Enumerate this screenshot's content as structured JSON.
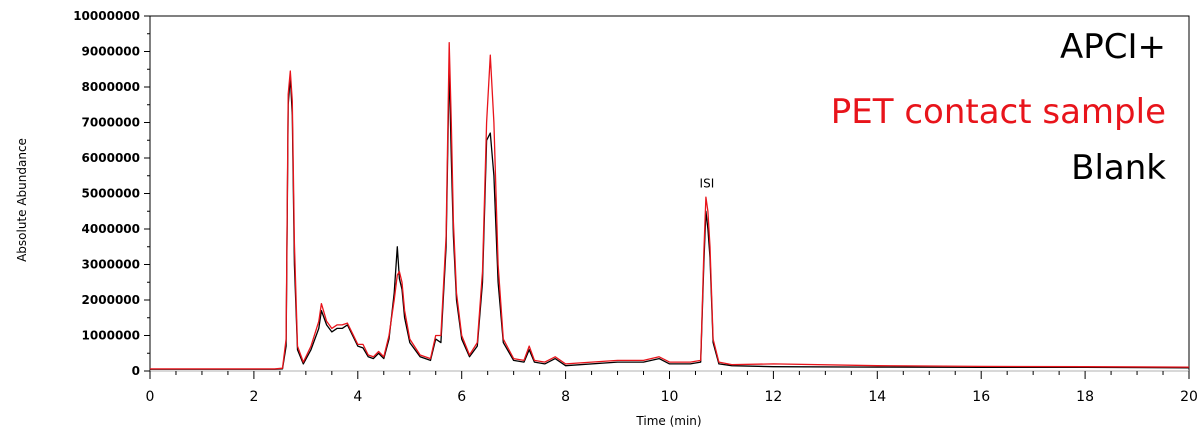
{
  "chart_data": {
    "type": "line",
    "xlabel": "Time (min)",
    "ylabel": "Absolute Abundance",
    "xlim": [
      0,
      20
    ],
    "ylim": [
      0,
      10000000
    ],
    "x_ticks": [
      0,
      2,
      4,
      6,
      8,
      10,
      12,
      14,
      16,
      18,
      20
    ],
    "y_ticks": [
      0,
      1000000,
      2000000,
      3000000,
      4000000,
      5000000,
      6000000,
      7000000,
      8000000,
      9000000,
      10000000
    ],
    "y_tick_labels": [
      "0",
      "1000000",
      "2000000",
      "3000000",
      "4000000",
      "5000000",
      "6000000",
      "7000000",
      "8000000",
      "9000000",
      "10000000"
    ],
    "x_tick_labels": [
      "0",
      "2",
      "4",
      "6",
      "8",
      "10",
      "12",
      "14",
      "16",
      "18",
      "20"
    ],
    "legend": {
      "placement": "top-right",
      "heading": "APCI+",
      "entries": [
        {
          "label": "PET contact sample",
          "color": "#e8141b"
        },
        {
          "label": "Blank",
          "color": "#000000"
        }
      ]
    },
    "annotations": [
      {
        "text": "ISI",
        "x": 10.72,
        "y": 5000000
      }
    ],
    "series": [
      {
        "name": "Blank",
        "color": "#000000",
        "x": [
          0,
          2.4,
          2.55,
          2.62,
          2.66,
          2.7,
          2.74,
          2.78,
          2.84,
          2.95,
          3.1,
          3.25,
          3.3,
          3.4,
          3.5,
          3.6,
          3.7,
          3.8,
          3.9,
          4.0,
          4.1,
          4.2,
          4.3,
          4.4,
          4.5,
          4.6,
          4.7,
          4.76,
          4.8,
          4.85,
          4.9,
          5.0,
          5.2,
          5.4,
          5.5,
          5.6,
          5.7,
          5.76,
          5.8,
          5.84,
          5.9,
          6.0,
          6.15,
          6.3,
          6.4,
          6.48,
          6.55,
          6.62,
          6.7,
          6.8,
          7.0,
          7.2,
          7.3,
          7.4,
          7.6,
          7.8,
          8.0,
          9.0,
          9.5,
          9.8,
          10.0,
          10.4,
          10.6,
          10.66,
          10.7,
          10.74,
          10.78,
          10.84,
          10.95,
          11.2,
          12.0,
          14.0,
          16.0,
          18.0,
          20.0
        ],
        "y": [
          50000,
          50000,
          60000,
          700000,
          7500000,
          8300000,
          7200000,
          3000000,
          600000,
          200000,
          600000,
          1200000,
          1700000,
          1300000,
          1100000,
          1200000,
          1200000,
          1300000,
          1000000,
          700000,
          650000,
          400000,
          350000,
          500000,
          350000,
          900000,
          2200000,
          3500000,
          2600000,
          2300000,
          1500000,
          800000,
          400000,
          300000,
          900000,
          800000,
          3500000,
          8600000,
          6000000,
          3800000,
          2000000,
          900000,
          400000,
          700000,
          2500000,
          6500000,
          6700000,
          5500000,
          2500000,
          800000,
          300000,
          250000,
          600000,
          250000,
          200000,
          350000,
          150000,
          250000,
          250000,
          350000,
          200000,
          200000,
          250000,
          3000000,
          4500000,
          4000000,
          3200000,
          800000,
          200000,
          150000,
          120000,
          110000,
          100000,
          100000,
          90000
        ]
      },
      {
        "name": "PET contact sample",
        "color": "#e8141b",
        "x": [
          0,
          2.4,
          2.55,
          2.62,
          2.66,
          2.7,
          2.74,
          2.78,
          2.84,
          2.95,
          3.1,
          3.25,
          3.3,
          3.4,
          3.5,
          3.6,
          3.7,
          3.8,
          3.9,
          4.0,
          4.1,
          4.2,
          4.3,
          4.4,
          4.5,
          4.6,
          4.7,
          4.76,
          4.8,
          4.85,
          4.9,
          5.0,
          5.2,
          5.4,
          5.5,
          5.6,
          5.7,
          5.76,
          5.8,
          5.84,
          5.9,
          6.0,
          6.15,
          6.3,
          6.4,
          6.48,
          6.55,
          6.62,
          6.7,
          6.8,
          7.0,
          7.2,
          7.3,
          7.4,
          7.6,
          7.8,
          8.0,
          9.0,
          9.5,
          9.8,
          10.0,
          10.4,
          10.6,
          10.66,
          10.7,
          10.74,
          10.78,
          10.84,
          10.95,
          11.2,
          12.0,
          14.0,
          16.0,
          18.0,
          20.0
        ],
        "y": [
          60000,
          60000,
          80000,
          900000,
          7800000,
          8450000,
          7600000,
          3600000,
          700000,
          250000,
          700000,
          1400000,
          1900000,
          1400000,
          1200000,
          1300000,
          1300000,
          1350000,
          1050000,
          750000,
          750000,
          450000,
          400000,
          550000,
          400000,
          1000000,
          2000000,
          2700000,
          2800000,
          2500000,
          1700000,
          900000,
          450000,
          350000,
          1000000,
          1000000,
          3800000,
          9250000,
          7000000,
          4200000,
          2200000,
          1000000,
          450000,
          800000,
          2800000,
          7000000,
          8900000,
          7000000,
          3000000,
          900000,
          350000,
          300000,
          700000,
          300000,
          250000,
          400000,
          200000,
          300000,
          300000,
          400000,
          250000,
          250000,
          300000,
          3300000,
          4900000,
          4500000,
          3500000,
          900000,
          250000,
          180000,
          200000,
          150000,
          130000,
          120000,
          110000
        ]
      }
    ]
  }
}
